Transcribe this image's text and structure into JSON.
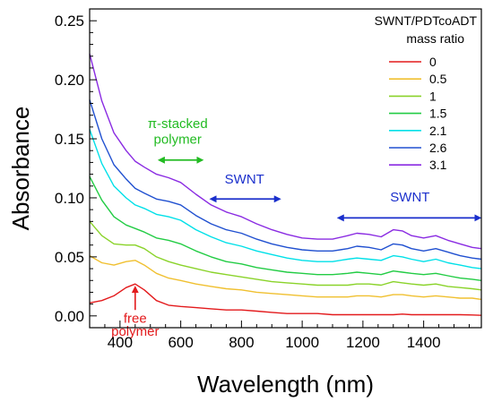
{
  "chart_data": {
    "type": "line",
    "xlabel": "Wavelength (nm)",
    "ylabel": "Absorbance",
    "xlim": [
      300,
      1590
    ],
    "ylim": [
      -0.01,
      0.26
    ],
    "x_ticks": [
      400,
      600,
      800,
      1000,
      1200,
      1400
    ],
    "x_tick_labels": [
      "400",
      "600",
      "800",
      "1000",
      "1200",
      "1400"
    ],
    "y_ticks": [
      0.0,
      0.05,
      0.1,
      0.15,
      0.2,
      0.25
    ],
    "y_tick_labels": [
      "0.00",
      "0.05",
      "0.10",
      "0.15",
      "0.20",
      "0.25"
    ],
    "grid": false,
    "legend": {
      "title_line1": "SWNT/PDTcoADT",
      "title_line2": "mass ratio",
      "placement": "top-right"
    },
    "x": [
      300,
      340,
      380,
      420,
      450,
      480,
      520,
      560,
      600,
      650,
      700,
      750,
      800,
      850,
      900,
      950,
      1000,
      1050,
      1100,
      1150,
      1180,
      1220,
      1260,
      1300,
      1330,
      1360,
      1400,
      1440,
      1480,
      1520,
      1560,
      1590
    ],
    "series": [
      {
        "name": "0",
        "color": "#e31a1c",
        "values": [
          0.011,
          0.013,
          0.017,
          0.024,
          0.027,
          0.022,
          0.013,
          0.009,
          0.008,
          0.007,
          0.006,
          0.005,
          0.005,
          0.004,
          0.003,
          0.002,
          0.002,
          0.002,
          0.001,
          0.001,
          0.001,
          0.001,
          0.001,
          0.001,
          0.0015,
          0.001,
          0.001,
          0.001,
          0.001,
          0.001,
          0.0008,
          0.0005
        ]
      },
      {
        "name": "0.5",
        "color": "#f0c030",
        "values": [
          0.051,
          0.045,
          0.043,
          0.046,
          0.047,
          0.043,
          0.036,
          0.032,
          0.03,
          0.027,
          0.025,
          0.023,
          0.022,
          0.02,
          0.019,
          0.018,
          0.017,
          0.016,
          0.016,
          0.016,
          0.017,
          0.017,
          0.016,
          0.018,
          0.018,
          0.017,
          0.016,
          0.017,
          0.016,
          0.015,
          0.015,
          0.014
        ]
      },
      {
        "name": "1",
        "color": "#8ad32a",
        "values": [
          0.08,
          0.068,
          0.061,
          0.06,
          0.06,
          0.057,
          0.05,
          0.046,
          0.043,
          0.04,
          0.037,
          0.035,
          0.033,
          0.031,
          0.029,
          0.028,
          0.027,
          0.026,
          0.026,
          0.026,
          0.027,
          0.027,
          0.026,
          0.029,
          0.028,
          0.027,
          0.026,
          0.027,
          0.025,
          0.024,
          0.023,
          0.022
        ]
      },
      {
        "name": "1.5",
        "color": "#22cc44",
        "values": [
          0.118,
          0.098,
          0.084,
          0.077,
          0.074,
          0.071,
          0.066,
          0.064,
          0.061,
          0.055,
          0.05,
          0.046,
          0.044,
          0.041,
          0.039,
          0.037,
          0.036,
          0.035,
          0.035,
          0.036,
          0.037,
          0.036,
          0.035,
          0.038,
          0.037,
          0.036,
          0.035,
          0.036,
          0.034,
          0.032,
          0.031,
          0.03
        ]
      },
      {
        "name": "2.1",
        "color": "#00e0e8",
        "values": [
          0.158,
          0.129,
          0.11,
          0.1,
          0.094,
          0.091,
          0.086,
          0.084,
          0.081,
          0.073,
          0.067,
          0.062,
          0.059,
          0.055,
          0.052,
          0.049,
          0.047,
          0.046,
          0.046,
          0.048,
          0.049,
          0.048,
          0.047,
          0.051,
          0.05,
          0.048,
          0.046,
          0.048,
          0.045,
          0.043,
          0.041,
          0.04
        ]
      },
      {
        "name": "2.6",
        "color": "#2050d0",
        "values": [
          0.183,
          0.15,
          0.128,
          0.116,
          0.108,
          0.104,
          0.099,
          0.097,
          0.094,
          0.085,
          0.078,
          0.073,
          0.07,
          0.065,
          0.061,
          0.058,
          0.056,
          0.055,
          0.055,
          0.057,
          0.059,
          0.058,
          0.056,
          0.061,
          0.06,
          0.057,
          0.055,
          0.057,
          0.054,
          0.051,
          0.049,
          0.048
        ]
      },
      {
        "name": "3.1",
        "color": "#8a2be2",
        "values": [
          0.222,
          0.182,
          0.155,
          0.14,
          0.131,
          0.126,
          0.12,
          0.117,
          0.113,
          0.103,
          0.094,
          0.088,
          0.084,
          0.078,
          0.073,
          0.069,
          0.066,
          0.065,
          0.065,
          0.068,
          0.07,
          0.069,
          0.067,
          0.073,
          0.072,
          0.068,
          0.066,
          0.068,
          0.064,
          0.061,
          0.058,
          0.057
        ]
      }
    ],
    "annotations": [
      {
        "key": "pi_stacked",
        "line1": "π-stacked",
        "line2": "polymer",
        "color": "#22bb22",
        "arrow_x": [
          530,
          670
        ],
        "arrow_y": 0.132,
        "text_x": 590,
        "text_y1": 0.159,
        "text_y2": 0.146
      },
      {
        "key": "swnt_visible",
        "text": "SWNT",
        "color": "#1a2fcc",
        "arrow_x": [
          700,
          925
        ],
        "arrow_y": 0.099,
        "text_x": 810,
        "text_y": 0.112
      },
      {
        "key": "swnt_nir",
        "text": "SWNT",
        "color": "#1a2fcc",
        "arrow_x": [
          1120,
          1585
        ],
        "arrow_y": 0.083,
        "text_x": 1355,
        "text_y": 0.097
      },
      {
        "key": "free_polymer",
        "line1": "free",
        "line2": "polymer",
        "color": "#e31a1c",
        "arrow_tail_y": 0.005,
        "arrow_head_y": 0.024,
        "arrow_x": 450,
        "text_x": 450,
        "text_y1": -0.006,
        "text_y2": -0.017
      }
    ]
  }
}
